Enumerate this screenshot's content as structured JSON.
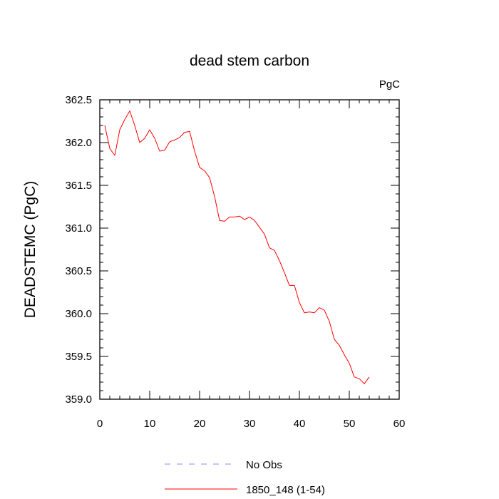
{
  "chart_data": {
    "type": "line",
    "title": "dead stem carbon",
    "units": "PgC",
    "xlabel": "",
    "ylabel": "DEADSTEMC  (PgC)",
    "xlim": [
      0,
      60
    ],
    "ylim": [
      359.0,
      362.5
    ],
    "xticks": [
      0,
      10,
      20,
      30,
      40,
      50,
      60
    ],
    "yticks": [
      359.0,
      359.5,
      360.0,
      360.5,
      361.0,
      361.5,
      362.0,
      362.5
    ],
    "ytick_labels": [
      "359.0",
      "359.5",
      "360.0",
      "360.5",
      "361.0",
      "361.5",
      "362.0",
      "362.5"
    ],
    "series": [
      {
        "name": "1850_148 (1-54)",
        "color": "#ff0000",
        "x": [
          1,
          2,
          3,
          4,
          5,
          6,
          7,
          8,
          9,
          10,
          11,
          12,
          13,
          14,
          15,
          16,
          17,
          18,
          19,
          20,
          21,
          22,
          23,
          24,
          25,
          26,
          27,
          28,
          29,
          30,
          31,
          32,
          33,
          34,
          35,
          36,
          37,
          38,
          39,
          40,
          41,
          42,
          43,
          44,
          45,
          46,
          47,
          48,
          49,
          50,
          51,
          52,
          53,
          54
        ],
        "values": [
          362.2,
          361.93,
          361.85,
          362.15,
          362.27,
          362.37,
          362.2,
          362.0,
          362.05,
          362.15,
          362.05,
          361.9,
          361.91,
          362.01,
          362.03,
          362.06,
          362.12,
          362.13,
          361.9,
          361.71,
          361.67,
          361.59,
          361.37,
          361.09,
          361.08,
          361.13,
          361.13,
          361.14,
          361.1,
          361.13,
          361.09,
          361.01,
          360.93,
          360.77,
          360.74,
          360.62,
          360.48,
          360.33,
          360.33,
          360.13,
          360.01,
          360.02,
          360.01,
          360.07,
          360.04,
          359.91,
          359.7,
          359.63,
          359.52,
          359.42,
          359.26,
          359.24,
          359.18,
          359.26
        ]
      }
    ],
    "legend": [
      {
        "label": "No Obs",
        "color": "#8888ff",
        "style": "dashed"
      },
      {
        "label": "1850_148 (1-54)",
        "color": "#ff0000",
        "style": "solid"
      }
    ],
    "legend_position": "bottom-center"
  }
}
